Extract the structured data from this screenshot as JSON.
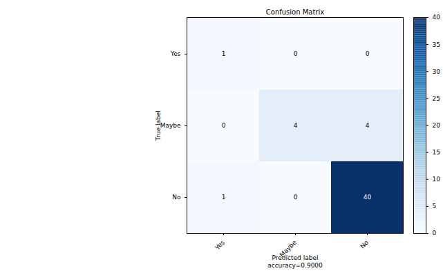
{
  "chart_data": {
    "type": "heatmap",
    "title": "Confusion Matrix",
    "x_label": "Predicted label",
    "y_label": "True label",
    "caption": "accuracy=0.9000",
    "x_categories": [
      "Yes",
      "Maybe",
      "No"
    ],
    "y_categories": [
      "Yes",
      "Maybe",
      "No"
    ],
    "values": [
      [
        1,
        0,
        0
      ],
      [
        0,
        4,
        4
      ],
      [
        1,
        0,
        40
      ]
    ],
    "data_labels": true,
    "colorbar": {
      "range": [
        0,
        40
      ],
      "ticks": [
        0,
        5,
        10,
        15,
        20,
        25,
        30,
        35,
        40
      ]
    }
  }
}
